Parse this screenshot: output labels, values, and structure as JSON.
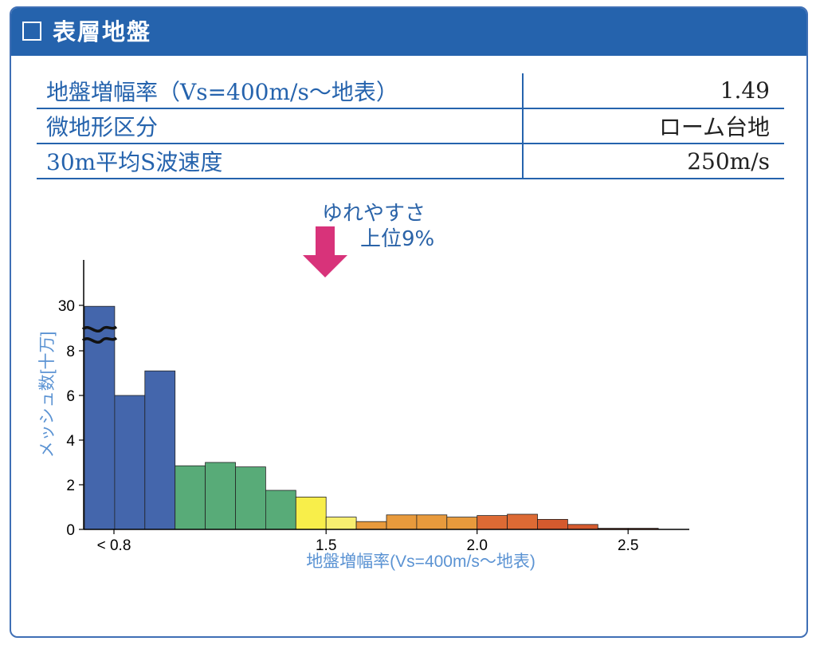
{
  "header": {
    "title": "表層地盤",
    "checkbox_icon": "checkbox-empty-icon"
  },
  "table": {
    "rows": [
      {
        "label": "地盤増幅率（Vs=400m/s〜地表）",
        "value": "1.49"
      },
      {
        "label": "微地形区分",
        "value": "ローム台地"
      },
      {
        "label": "30m平均S波速度",
        "value": "250m/s"
      }
    ]
  },
  "marker": {
    "line1": "ゆれやすさ",
    "line2": "上位9%",
    "icon": "down-arrow-icon",
    "color": "#d8337a"
  },
  "colors": {
    "accent": "#2563ad",
    "blue": "#4466ac",
    "green": "#58ab78",
    "yellow": "#f8ee4a",
    "light_yellow": "#f8ef70",
    "orange": "#e89a3c",
    "dark_orange": "#dd6a34",
    "red_orange": "#d45a2e"
  },
  "chart_data": {
    "type": "bar",
    "xlabel": "地盤増幅率(Vs=400m/s〜地表)",
    "ylabel": "メッシュ数[十万]",
    "x_ticks": [
      "< 0.8",
      "1.5",
      "2.0",
      "2.5"
    ],
    "y_ticks": [
      "0",
      "2",
      "4",
      "6",
      "8",
      "30"
    ],
    "axis_break": true,
    "marker_value": 1.49,
    "bins": [
      {
        "value": 29.7,
        "color": "#4466ac"
      },
      {
        "value": 6.0,
        "color": "#4466ac"
      },
      {
        "value": 7.1,
        "color": "#4466ac"
      },
      {
        "value": 2.85,
        "color": "#58ab78"
      },
      {
        "value": 3.0,
        "color": "#58ab78"
      },
      {
        "value": 2.8,
        "color": "#58ab78"
      },
      {
        "value": 1.75,
        "color": "#58ab78"
      },
      {
        "value": 1.45,
        "color": "#f8ee4a"
      },
      {
        "value": 0.55,
        "color": "#f8ef70"
      },
      {
        "value": 0.35,
        "color": "#e89a3c"
      },
      {
        "value": 0.65,
        "color": "#e89a3c"
      },
      {
        "value": 0.65,
        "color": "#e89a3c"
      },
      {
        "value": 0.55,
        "color": "#e89a3c"
      },
      {
        "value": 0.62,
        "color": "#dd6a34"
      },
      {
        "value": 0.68,
        "color": "#dd6a34"
      },
      {
        "value": 0.45,
        "color": "#d45a2e"
      },
      {
        "value": 0.22,
        "color": "#d45a2e"
      },
      {
        "value": 0.05,
        "color": "#d45a2e"
      },
      {
        "value": 0.05,
        "color": "#d45a2e"
      }
    ]
  }
}
